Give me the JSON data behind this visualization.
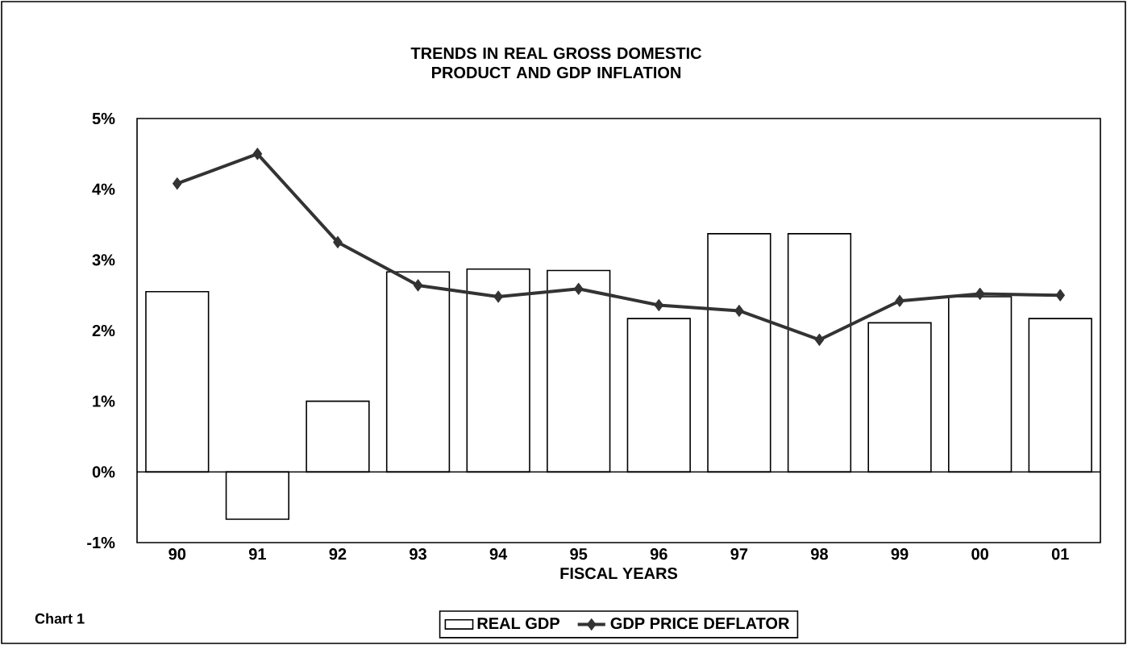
{
  "chart_data": {
    "type": "bar",
    "title": "TRENDS IN REAL GROSS DOMESTIC PRODUCT AND GDP INFLATION",
    "xlabel": "FISCAL YEARS",
    "categories": [
      "90",
      "91",
      "92",
      "93",
      "94",
      "95",
      "96",
      "97",
      "98",
      "99",
      "00",
      "01"
    ],
    "series": [
      {
        "name": "REAL GDP",
        "color": "#ffffff",
        "values": [
          2.55,
          -0.67,
          1.0,
          2.83,
          2.87,
          2.85,
          2.17,
          3.37,
          3.37,
          2.11,
          2.48,
          2.17
        ]
      },
      {
        "name": "GDP PRICE DEFLATOR",
        "type": "line",
        "color": "#333333",
        "marker": "diamond",
        "values": [
          4.08,
          4.5,
          3.25,
          2.64,
          2.48,
          2.59,
          2.36,
          2.28,
          1.87,
          2.42,
          2.52,
          2.5
        ]
      }
    ],
    "ylim": [
      -1,
      5
    ],
    "yticks": [
      {
        "value": -1,
        "label": "-1%"
      },
      {
        "value": 0,
        "label": "0%"
      },
      {
        "value": 1,
        "label": "1%"
      },
      {
        "value": 2,
        "label": "2%"
      },
      {
        "value": 3,
        "label": "3%"
      },
      {
        "value": 4,
        "label": "4%"
      },
      {
        "value": 5,
        "label": "5%"
      }
    ],
    "legend": "bottom",
    "annotations": [
      "Chart 1"
    ]
  }
}
